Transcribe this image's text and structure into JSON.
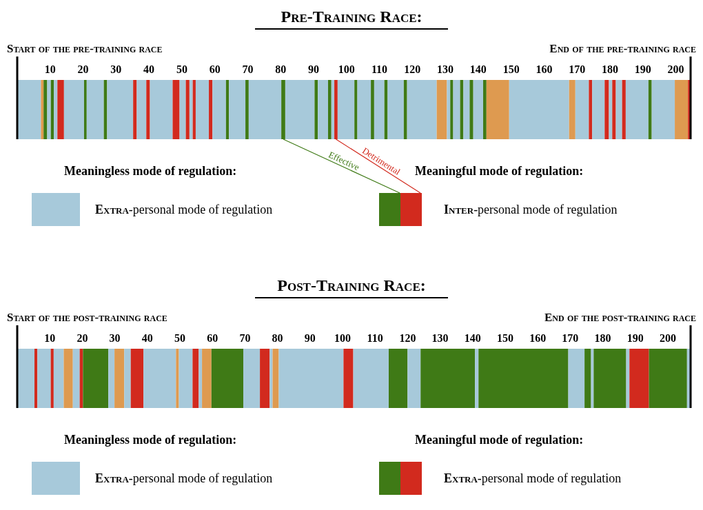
{
  "chart_data": [
    {
      "type": "bar",
      "orientation": "horizontal",
      "stacked": true,
      "title": "Pre-Training Race:",
      "categories": [
        null
      ],
      "xlim": [
        0,
        204.5
      ],
      "xticks": [
        10,
        20,
        30,
        40,
        50,
        60,
        70,
        80,
        90,
        100,
        110,
        120,
        130,
        140,
        150,
        160,
        170,
        180,
        190,
        200
      ],
      "tick_labels": "x",
      "legend": "bottom",
      "series": [
        {
          "name": "Extra-personal mode of regulation",
          "color": "#a7c9da",
          "values": [
            7.2
          ]
        },
        {
          "color": "#de9a50",
          "values": [
            0.8
          ]
        },
        {
          "color": "#3f7a16",
          "values": [
            1.1
          ]
        },
        {
          "color": "#a7c9da",
          "values": [
            1.1
          ]
        },
        {
          "color": "#3f7a16",
          "values": [
            0.9
          ]
        },
        {
          "color": "#a7c9da",
          "values": [
            1.1
          ]
        },
        {
          "color": "#d22a1e",
          "values": [
            2
          ]
        },
        {
          "color": "#a7c9da",
          "values": [
            6.1
          ]
        },
        {
          "color": "#3f7a16",
          "values": [
            0.8
          ]
        },
        {
          "color": "#a7c9da",
          "values": [
            5.2
          ]
        },
        {
          "color": "#3f7a16",
          "values": [
            1
          ]
        },
        {
          "color": "#a7c9da",
          "values": [
            7.9
          ]
        },
        {
          "color": "#d22a1e",
          "values": [
            1.1
          ]
        },
        {
          "color": "#a7c9da",
          "values": [
            2.9
          ]
        },
        {
          "color": "#d22a1e",
          "values": [
            1.1
          ]
        },
        {
          "color": "#a7c9da",
          "values": [
            6.9
          ]
        },
        {
          "color": "#d22a1e",
          "values": [
            2.1
          ]
        },
        {
          "color": "#a7c9da",
          "values": [
            1.9
          ]
        },
        {
          "color": "#d22a1e",
          "values": [
            1.1
          ]
        },
        {
          "color": "#a7c9da",
          "values": [
            1
          ]
        },
        {
          "color": "#d22a1e",
          "values": [
            0.9
          ]
        },
        {
          "color": "#a7c9da",
          "values": [
            4
          ]
        },
        {
          "color": "#d22a1e",
          "values": [
            1.1
          ]
        },
        {
          "color": "#a7c9da",
          "values": [
            4.1
          ]
        },
        {
          "color": "#3f7a16",
          "values": [
            0.9
          ]
        },
        {
          "color": "#a7c9da",
          "values": [
            5
          ]
        },
        {
          "color": "#3f7a16",
          "values": [
            1
          ]
        },
        {
          "color": "#a7c9da",
          "values": [
            9.9
          ]
        },
        {
          "color": "#3f7a16",
          "values": [
            1.2
          ]
        },
        {
          "color": "#a7c9da",
          "values": [
            8.9
          ]
        },
        {
          "color": "#3f7a16",
          "values": [
            1
          ]
        },
        {
          "color": "#a7c9da",
          "values": [
            3.1
          ]
        },
        {
          "color": "#3f7a16",
          "values": [
            1
          ]
        },
        {
          "color": "#a7c9da",
          "values": [
            0.9
          ]
        },
        {
          "color": "#d22a1e",
          "values": [
            1
          ]
        },
        {
          "color": "#a7c9da",
          "values": [
            5.1
          ]
        },
        {
          "color": "#3f7a16",
          "values": [
            0.9
          ]
        },
        {
          "color": "#a7c9da",
          "values": [
            4.1
          ]
        },
        {
          "color": "#3f7a16",
          "values": [
            1
          ]
        },
        {
          "color": "#a7c9da",
          "values": [
            3.1
          ]
        },
        {
          "color": "#3f7a16",
          "values": [
            1
          ]
        },
        {
          "color": "#a7c9da",
          "values": [
            4.9
          ]
        },
        {
          "color": "#3f7a16",
          "values": [
            1
          ]
        },
        {
          "color": "#a7c9da",
          "values": [
            9
          ]
        },
        {
          "color": "#de9a50",
          "values": [
            3.1
          ]
        },
        {
          "color": "#a7c9da",
          "values": [
            1
          ]
        },
        {
          "color": "#3f7a16",
          "values": [
            0.9
          ]
        },
        {
          "color": "#a7c9da",
          "values": [
            2.1
          ]
        },
        {
          "color": "#3f7a16",
          "values": [
            1
          ]
        },
        {
          "color": "#a7c9da",
          "values": [
            1.9
          ]
        },
        {
          "color": "#3f7a16",
          "values": [
            1.1
          ]
        },
        {
          "color": "#a7c9da",
          "values": [
            3
          ]
        },
        {
          "color": "#3f7a16",
          "values": [
            1
          ]
        },
        {
          "color": "#de9a50",
          "values": [
            6.9
          ]
        },
        {
          "color": "#a7c9da",
          "values": [
            18.2
          ]
        },
        {
          "color": "#de9a50",
          "values": [
            1.9
          ]
        },
        {
          "color": "#a7c9da",
          "values": [
            4.1
          ]
        },
        {
          "color": "#d22a1e",
          "values": [
            1
          ]
        },
        {
          "color": "#a7c9da",
          "values": [
            3.8
          ]
        },
        {
          "color": "#d22a1e",
          "values": [
            1.3
          ]
        },
        {
          "color": "#a7c9da",
          "values": [
            1
          ]
        },
        {
          "color": "#d22a1e",
          "values": [
            1.1
          ]
        },
        {
          "color": "#a7c9da",
          "values": [
            1.9
          ]
        },
        {
          "color": "#d22a1e",
          "values": [
            1.1
          ]
        },
        {
          "color": "#a7c9da",
          "values": [
            6.9
          ]
        },
        {
          "color": "#3f7a16",
          "values": [
            1
          ]
        },
        {
          "color": "#a7c9da",
          "values": [
            7
          ]
        },
        {
          "color": "#de9a50",
          "values": [
            4
          ]
        },
        {
          "color": "#d22a1e",
          "values": [
            0.8
          ]
        }
      ],
      "annotations": [
        "Start of the pre-training race",
        "End of the pre-training race",
        "Meaningless mode of regulation:",
        "Meaningful mode of regulation:",
        "Inter-personal mode of regulation",
        "Effective",
        "Detrimental"
      ]
    },
    {
      "type": "bar",
      "orientation": "horizontal",
      "stacked": true,
      "title": "Post-Training Race:",
      "categories": [
        null
      ],
      "xlim": [
        0,
        207
      ],
      "xticks": [
        10,
        20,
        30,
        40,
        50,
        60,
        70,
        80,
        90,
        100,
        110,
        120,
        130,
        140,
        150,
        160,
        170,
        180,
        190,
        200
      ],
      "tick_labels": "x",
      "legend": "bottom",
      "series": [
        {
          "name": "Extra-personal mode of regulation",
          "color": "#a7c9da",
          "values": [
            5.3
          ]
        },
        {
          "color": "#d22a1e",
          "values": [
            0.9
          ]
        },
        {
          "color": "#a7c9da",
          "values": [
            4.1
          ]
        },
        {
          "color": "#d22a1e",
          "values": [
            0.9
          ]
        },
        {
          "color": "#a7c9da",
          "values": [
            3.1
          ]
        },
        {
          "color": "#de9a50",
          "values": [
            2.8
          ]
        },
        {
          "color": "#a7c9da",
          "values": [
            2.1
          ]
        },
        {
          "color": "#d22a1e",
          "values": [
            1
          ]
        },
        {
          "color": "#3f7a16",
          "values": [
            7.8
          ]
        },
        {
          "color": "#a7c9da",
          "values": [
            1.9
          ]
        },
        {
          "color": "#de9a50",
          "values": [
            3
          ]
        },
        {
          "color": "#a7c9da",
          "values": [
            2
          ]
        },
        {
          "color": "#d22a1e",
          "values": [
            3.9
          ]
        },
        {
          "color": "#a7c9da",
          "values": [
            10
          ]
        },
        {
          "color": "#de9a50",
          "values": [
            0.9
          ]
        },
        {
          "color": "#a7c9da",
          "values": [
            4.2
          ]
        },
        {
          "color": "#d22a1e",
          "values": [
            1.9
          ]
        },
        {
          "color": "#a7c9da",
          "values": [
            1
          ]
        },
        {
          "color": "#de9a50",
          "values": [
            2.9
          ]
        },
        {
          "color": "#3f7a16",
          "values": [
            9.8
          ]
        },
        {
          "color": "#a7c9da",
          "values": [
            5.1
          ]
        },
        {
          "color": "#d22a1e",
          "values": [
            3
          ]
        },
        {
          "color": "#a7c9da",
          "values": [
            0.9
          ]
        },
        {
          "color": "#de9a50",
          "values": [
            1.9
          ]
        },
        {
          "color": "#a7c9da",
          "values": [
            19.9
          ]
        },
        {
          "color": "#d22a1e",
          "values": [
            3
          ]
        },
        {
          "color": "#a7c9da",
          "values": [
            10.9
          ]
        },
        {
          "color": "#3f7a16",
          "values": [
            5.8
          ]
        },
        {
          "color": "#a7c9da",
          "values": [
            4
          ]
        },
        {
          "color": "#3f7a16",
          "values": [
            16.7
          ]
        },
        {
          "color": "#a7c9da",
          "values": [
            1.1
          ]
        },
        {
          "color": "#3f7a16",
          "values": [
            27.6
          ]
        },
        {
          "color": "#a7c9da",
          "values": [
            5
          ]
        },
        {
          "color": "#3f7a16",
          "values": [
            2
          ]
        },
        {
          "color": "#a7c9da",
          "values": [
            0.8
          ]
        },
        {
          "color": "#3f7a16",
          "values": [
            10
          ]
        },
        {
          "color": "#a7c9da",
          "values": [
            1
          ]
        },
        {
          "color": "#d22a1e",
          "values": [
            6
          ]
        },
        {
          "color": "#3f7a16",
          "values": [
            11.7
          ]
        },
        {
          "color": "#a7c9da",
          "values": [
            1.1
          ]
        }
      ],
      "annotations": [
        "Start of the post-training race",
        "End of the post-training race",
        "Meaningless mode of regulation:",
        "Meaningful mode of regulation:",
        "Extra-personal mode of regulation"
      ]
    }
  ]
}
